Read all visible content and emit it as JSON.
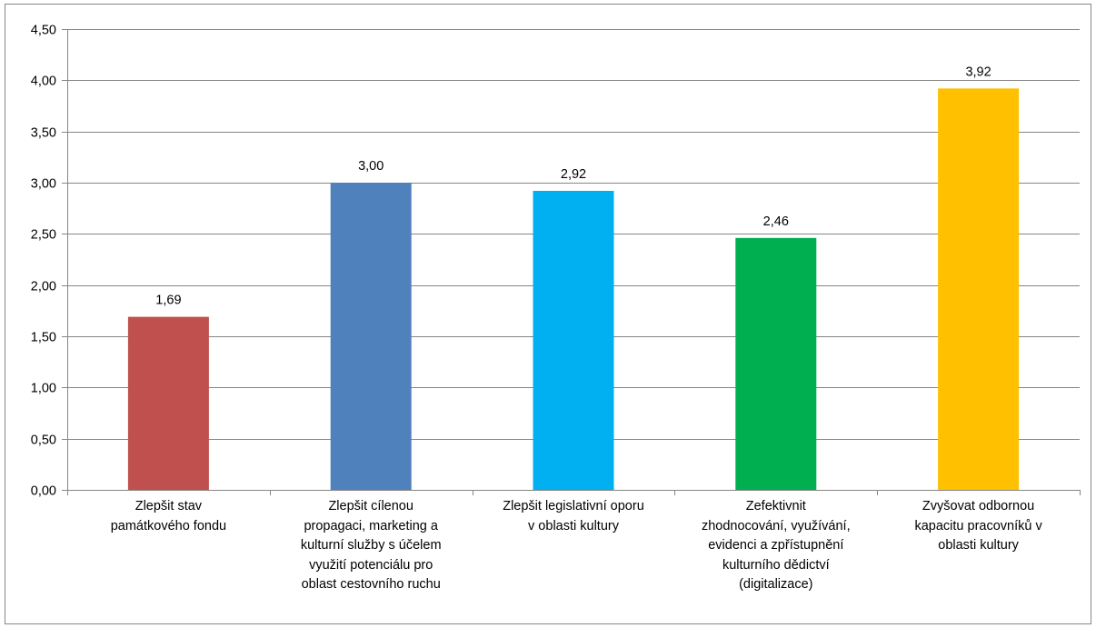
{
  "chart_data": {
    "type": "bar",
    "categories": [
      [
        "Zlepšit stav",
        "památkového fondu"
      ],
      [
        "Zlepšit cílenou",
        "propagaci, marketing a",
        "kulturní služby s účelem",
        "využití potenciálu pro",
        "oblast cestovního ruchu"
      ],
      [
        "Zlepšit legislativní oporu",
        "v oblasti kultury"
      ],
      [
        "Zefektivnit",
        "zhodnocování, využívání,",
        "evidenci a zpřístupnění",
        "kulturního dědictví",
        "(digitalizace)"
      ],
      [
        "Zvyšovat odbornou",
        "kapacitu pracovníků v",
        "oblasti kultury"
      ]
    ],
    "values": [
      1.69,
      3.0,
      2.92,
      2.46,
      3.92
    ],
    "data_labels": [
      "1,69",
      "3,00",
      "2,92",
      "2,46",
      "3,92"
    ],
    "colors": [
      "#C0504D",
      "#4F81BD",
      "#00B0F0",
      "#00B050",
      "#FFC000"
    ],
    "ylim": [
      0,
      4.5
    ],
    "yticks": [
      "0,00",
      "0,50",
      "1,00",
      "1,50",
      "2,00",
      "2,50",
      "3,00",
      "3,50",
      "4,00",
      "4,50"
    ],
    "grid": true,
    "legend": "none"
  }
}
